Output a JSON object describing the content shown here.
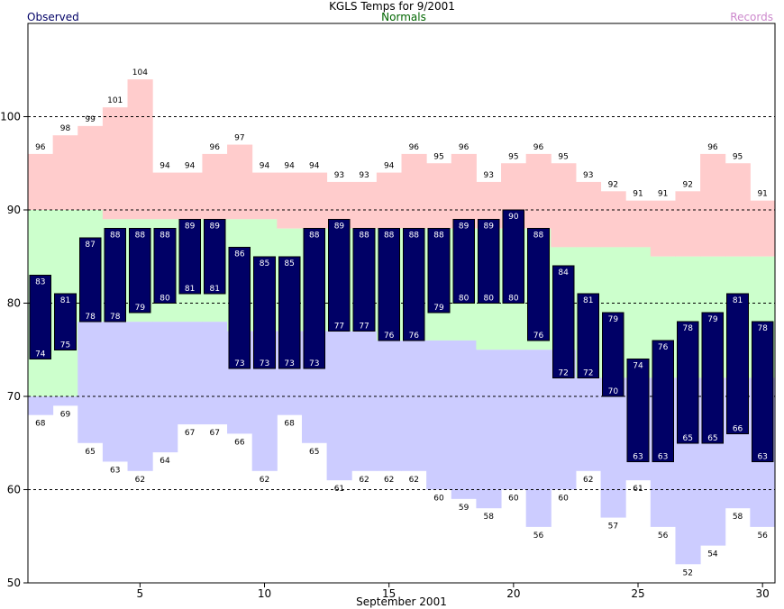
{
  "header": {
    "title": "KGLS Temps for 9/2001",
    "legend_observed": "Observed",
    "legend_normals": "Normals",
    "legend_records": "Records"
  },
  "colors": {
    "observed": "#000066",
    "normals": "#ccffcc",
    "records_high": "#ffcccc",
    "records_low": "#ccccff",
    "legend_observed": "#000066",
    "legend_normals": "#006600",
    "legend_records": "#cc88cc"
  },
  "chart_data": {
    "type": "bar",
    "title": "KGLS Temps for 9/2001",
    "xlabel": "September 2001",
    "ylabel": "",
    "xlim": [
      1,
      30
    ],
    "ylim": [
      50,
      110
    ],
    "xticks": [
      5,
      10,
      15,
      20,
      25,
      30
    ],
    "yticks": [
      50,
      60,
      70,
      80,
      90,
      100
    ],
    "dashed_gridlines": [
      60,
      70,
      80,
      90,
      100
    ],
    "days": [
      1,
      2,
      3,
      4,
      5,
      6,
      7,
      8,
      9,
      10,
      11,
      12,
      13,
      14,
      15,
      16,
      17,
      18,
      19,
      20,
      21,
      22,
      23,
      24,
      25,
      26,
      27,
      28,
      29,
      30
    ],
    "observed_high": [
      83,
      81,
      87,
      88,
      88,
      88,
      89,
      89,
      86,
      85,
      85,
      88,
      89,
      88,
      88,
      88,
      88,
      89,
      89,
      90,
      88,
      84,
      81,
      79,
      74,
      76,
      78,
      79,
      81,
      78
    ],
    "observed_low": [
      74,
      75,
      78,
      78,
      79,
      80,
      81,
      81,
      73,
      73,
      73,
      73,
      77,
      77,
      76,
      76,
      79,
      80,
      80,
      80,
      76,
      72,
      72,
      70,
      63,
      63,
      65,
      65,
      66,
      63
    ],
    "normal_high": [
      90,
      90,
      90,
      89,
      89,
      89,
      89,
      89,
      89,
      89,
      88,
      88,
      88,
      88,
      88,
      88,
      88,
      88,
      88,
      88,
      88,
      86,
      86,
      86,
      86,
      85,
      85,
      85,
      85,
      85
    ],
    "normal_low": [
      70,
      70,
      78,
      78,
      78,
      78,
      78,
      78,
      77,
      77,
      77,
      77,
      77,
      77,
      76,
      76,
      76,
      76,
      75,
      75,
      75,
      75,
      72,
      72,
      72,
      72,
      72,
      72,
      72,
      72
    ],
    "record_high": [
      96,
      98,
      99,
      101,
      104,
      94,
      94,
      96,
      97,
      94,
      94,
      94,
      93,
      93,
      94,
      96,
      95,
      96,
      93,
      95,
      96,
      95,
      93,
      92,
      91,
      91,
      92,
      96,
      95,
      91
    ],
    "record_low": [
      68,
      69,
      65,
      63,
      62,
      64,
      67,
      67,
      66,
      62,
      68,
      65,
      61,
      62,
      62,
      62,
      60,
      59,
      58,
      60,
      56,
      60,
      62,
      57,
      61,
      56,
      52,
      54,
      58,
      56
    ]
  }
}
